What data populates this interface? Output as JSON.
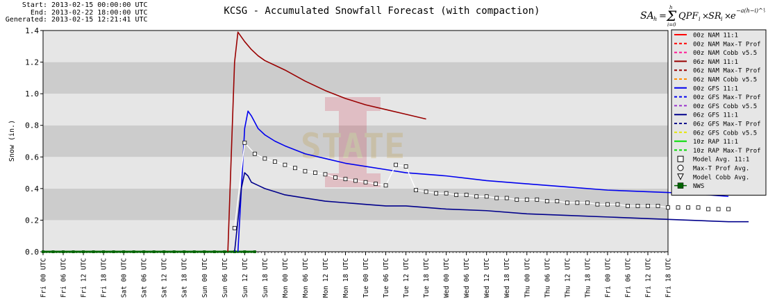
{
  "header": {
    "start_label": "Start:",
    "start_value": "2013-02-15 00:00:00 UTC",
    "end_label": "End:",
    "end_value": "2013-02-22 18:00:00 UTC",
    "generated_label": "Generated:",
    "generated_value": "2013-02-15 12:21:41 UTC"
  },
  "formula_text": "SA_h = ∑_{i=0}^{h} QPF_i × SR_i × e^{-a(h-i)^(1/2)}",
  "colors": {
    "plot_light": "#e6e6e6",
    "plot_dark": "#cccccc",
    "nam_00z": "#ff0000",
    "nam_06z": "#990000",
    "gfs_00z": "#0000ee",
    "gfs_06z": "#00008b",
    "rap": "#00dd00",
    "nws": "#006400",
    "model_avg": "#ffffff"
  },
  "chart_data": {
    "type": "line",
    "title": "KCSG - Accumulated Snowfall Forecast (with compaction)",
    "ylabel": "Snow (in.)",
    "xlabel": "",
    "ylim": [
      0,
      1.4
    ],
    "yticks": [
      "0.0",
      "0.2",
      "0.4",
      "0.6",
      "0.8",
      "1.0",
      "1.2",
      "1.4"
    ],
    "xticks": [
      "Fri 00 UTC",
      "Fri 06 UTC",
      "Fri 12 UTC",
      "Fri 18 UTC",
      "Sat 00 UTC",
      "Sat 06 UTC",
      "Sat 12 UTC",
      "Sat 18 UTC",
      "Sun 00 UTC",
      "Sun 06 UTC",
      "Sun 12 UTC",
      "Sun 18 UTC",
      "Mon 00 UTC",
      "Mon 06 UTC",
      "Mon 12 UTC",
      "Mon 18 UTC",
      "Tue 00 UTC",
      "Tue 06 UTC",
      "Tue 12 UTC",
      "Tue 18 UTC",
      "Wed 00 UTC",
      "Wed 06 UTC",
      "Wed 12 UTC",
      "Wed 18 UTC",
      "Thu 00 UTC",
      "Thu 06 UTC",
      "Thu 12 UTC",
      "Thu 18 UTC",
      "Fri 00 UTC",
      "Fri 06 UTC",
      "Fri 12 UTC",
      "Fri 18 UTC"
    ],
    "x_unit": "hours since Fri 00 UTC",
    "grid": "alternating horizontal bands",
    "legend": "right",
    "legend_entries": [
      {
        "name": "00z NAM 11:1",
        "color": "#ff0000",
        "style": "solid"
      },
      {
        "name": "00z NAM Max-T Prof",
        "color": "#ff0000",
        "style": "dashed"
      },
      {
        "name": "00z NAM Cobb v5.5",
        "color": "#ff1493",
        "style": "dashed"
      },
      {
        "name": "06z NAM 11:1",
        "color": "#990000",
        "style": "solid"
      },
      {
        "name": "06z NAM Max-T Prof",
        "color": "#990000",
        "style": "dashed"
      },
      {
        "name": "06z NAM Cobb v5.5",
        "color": "#ff8c00",
        "style": "dashed"
      },
      {
        "name": "00z GFS 11:1",
        "color": "#0000ee",
        "style": "solid"
      },
      {
        "name": "00z GFS Max-T Prof",
        "color": "#0000ee",
        "style": "dashed"
      },
      {
        "name": "00z GFS Cobb v5.5",
        "color": "#9932cc",
        "style": "dashed"
      },
      {
        "name": "06z GFS 11:1",
        "color": "#00008b",
        "style": "solid"
      },
      {
        "name": "06z GFS Max-T Prof",
        "color": "#00008b",
        "style": "dashed"
      },
      {
        "name": "06z GFS Cobb v5.5",
        "color": "#e6e600",
        "style": "dashed"
      },
      {
        "name": "10z RAP 11:1",
        "color": "#00dd00",
        "style": "solid"
      },
      {
        "name": "10z RAP Max-T Prof",
        "color": "#00dd00",
        "style": "dashed"
      },
      {
        "name": "Model Avg. 11:1",
        "color": "#000000",
        "style": "square"
      },
      {
        "name": "Max-T Prof Avg.",
        "color": "#000000",
        "style": "circle"
      },
      {
        "name": "Model Cobb Avg.",
        "color": "#000000",
        "style": "triangle"
      },
      {
        "name": "NWS",
        "color": "#006400",
        "style": "filledsquare"
      }
    ],
    "series": [
      {
        "name": "06z NAM 11:1",
        "color": "#990000",
        "x": [
          55,
          57,
          58,
          60,
          62,
          64,
          66,
          69,
          72,
          78,
          84,
          90,
          96,
          102,
          108,
          114
        ],
        "y": [
          0.0,
          1.2,
          1.39,
          1.33,
          1.28,
          1.24,
          1.21,
          1.18,
          1.15,
          1.08,
          1.02,
          0.97,
          0.93,
          0.9,
          0.87,
          0.84
        ]
      },
      {
        "name": "00z GFS 11:1",
        "color": "#0000ee",
        "x": [
          58,
          60,
          61,
          62,
          64,
          66,
          69,
          72,
          78,
          84,
          90,
          96,
          102,
          108,
          114,
          120,
          132,
          144,
          156,
          168,
          180,
          192,
          204
        ],
        "y": [
          0.0,
          0.78,
          0.89,
          0.86,
          0.78,
          0.74,
          0.7,
          0.67,
          0.62,
          0.59,
          0.56,
          0.54,
          0.52,
          0.5,
          0.49,
          0.48,
          0.45,
          0.43,
          0.41,
          0.39,
          0.38,
          0.37,
          0.35
        ]
      },
      {
        "name": "06z GFS 11:1",
        "color": "#00008b",
        "x": [
          57,
          59,
          60,
          61,
          62,
          64,
          66,
          69,
          72,
          78,
          84,
          90,
          96,
          102,
          108,
          114,
          120,
          132,
          144,
          156,
          168,
          180,
          192,
          204,
          210
        ],
        "y": [
          0.0,
          0.4,
          0.5,
          0.48,
          0.44,
          0.42,
          0.4,
          0.38,
          0.36,
          0.34,
          0.32,
          0.31,
          0.3,
          0.29,
          0.29,
          0.28,
          0.27,
          0.26,
          0.24,
          0.23,
          0.22,
          0.21,
          0.2,
          0.19,
          0.19
        ]
      }
    ],
    "model_avg": {
      "name": "Model Avg. 11:1",
      "color": "#ffffff",
      "x": [
        57,
        60,
        63,
        66,
        69,
        72,
        75,
        78,
        81,
        84,
        87,
        90,
        93,
        96,
        99,
        102,
        105,
        108,
        111,
        114,
        117,
        120,
        123,
        126,
        129,
        132,
        135,
        138,
        141,
        144,
        147,
        150,
        153,
        156,
        159,
        162,
        165,
        168,
        171,
        174,
        177,
        180,
        183,
        186,
        189,
        192,
        195,
        198,
        201,
        204
      ],
      "y": [
        0.15,
        0.69,
        0.62,
        0.59,
        0.57,
        0.55,
        0.53,
        0.51,
        0.5,
        0.49,
        0.47,
        0.46,
        0.45,
        0.44,
        0.43,
        0.42,
        0.55,
        0.54,
        0.39,
        0.38,
        0.37,
        0.37,
        0.36,
        0.36,
        0.35,
        0.35,
        0.34,
        0.34,
        0.33,
        0.33,
        0.33,
        0.32,
        0.32,
        0.31,
        0.31,
        0.31,
        0.3,
        0.3,
        0.3,
        0.29,
        0.29,
        0.29,
        0.29,
        0.28,
        0.28,
        0.28,
        0.28,
        0.27,
        0.27,
        0.27
      ]
    },
    "nws": {
      "name": "NWS",
      "color": "#006400",
      "x_start": 0,
      "x_end": 63,
      "y": 0.0
    }
  }
}
